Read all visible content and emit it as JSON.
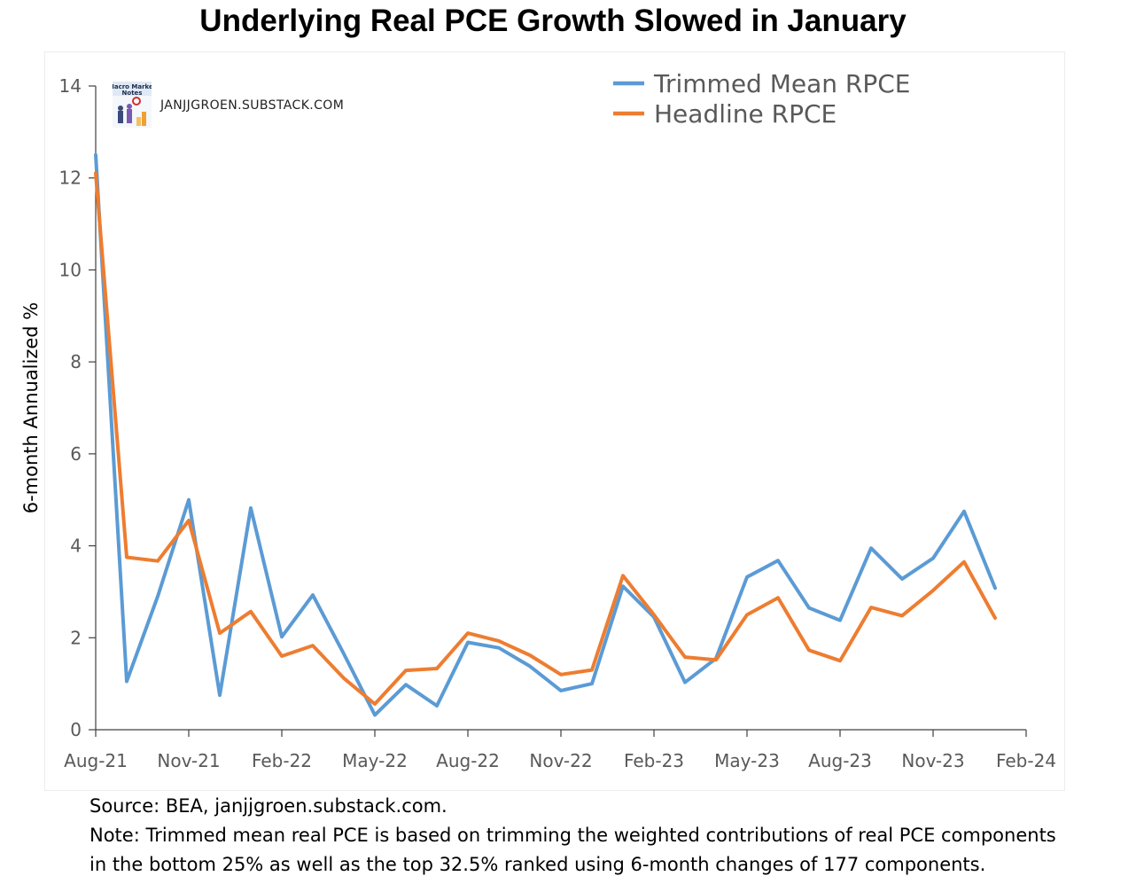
{
  "title": "Underlying Real PCE Growth Slowed in January",
  "watermark": {
    "logo_text": "Macro Market Notes",
    "site": "JANJJGROEN.SUBSTACK.COM"
  },
  "footer": {
    "source": "Source: BEA, janjjgroen.substack.com.",
    "note_line1": "Note: Trimmed mean real PCE is based on trimming the weighted contributions of real PCE components",
    "note_line2": "in the bottom 25% as well as the top 32.5% ranked using 6-month changes of 177 components."
  },
  "chart_data": {
    "type": "line",
    "ylabel": "6-month Annualized %",
    "ylim": [
      0,
      14
    ],
    "yticks": [
      0,
      2,
      4,
      6,
      8,
      10,
      12,
      14
    ],
    "xticks": [
      "Aug-21",
      "Nov-21",
      "Feb-22",
      "May-22",
      "Aug-22",
      "Nov-22",
      "Feb-23",
      "May-23",
      "Aug-23",
      "Nov-23",
      "Feb-24"
    ],
    "x": [
      "Aug-21",
      "Sep-21",
      "Oct-21",
      "Nov-21",
      "Dec-21",
      "Jan-22",
      "Feb-22",
      "Mar-22",
      "Apr-22",
      "May-22",
      "Jun-22",
      "Jul-22",
      "Aug-22",
      "Sep-22",
      "Oct-22",
      "Nov-22",
      "Dec-22",
      "Jan-23",
      "Feb-23",
      "Mar-23",
      "Apr-23",
      "May-23",
      "Jun-23",
      "Jul-23",
      "Aug-23",
      "Sep-23",
      "Oct-23",
      "Nov-23",
      "Dec-23",
      "Jan-24"
    ],
    "legend_position": "top-right",
    "grid": false,
    "series": [
      {
        "name": "Trimmed Mean RPCE",
        "color": "#5b9bd5",
        "values": [
          12.5,
          1.05,
          2.9,
          5.0,
          0.75,
          4.82,
          2.02,
          2.93,
          1.65,
          0.32,
          0.98,
          0.52,
          1.9,
          1.78,
          1.38,
          0.85,
          1.0,
          3.12,
          2.45,
          1.03,
          1.55,
          3.32,
          3.68,
          2.65,
          2.38,
          3.95,
          3.28,
          3.73,
          4.75,
          3.08
        ]
      },
      {
        "name": "Headline RPCE",
        "color": "#ed7d31",
        "values": [
          12.1,
          3.75,
          3.67,
          4.55,
          2.1,
          2.57,
          1.6,
          1.83,
          1.12,
          0.56,
          1.29,
          1.33,
          2.1,
          1.93,
          1.62,
          1.2,
          1.3,
          3.35,
          2.5,
          1.58,
          1.52,
          2.5,
          2.87,
          1.73,
          1.5,
          2.66,
          2.48,
          3.03,
          3.65,
          2.43
        ]
      }
    ]
  }
}
